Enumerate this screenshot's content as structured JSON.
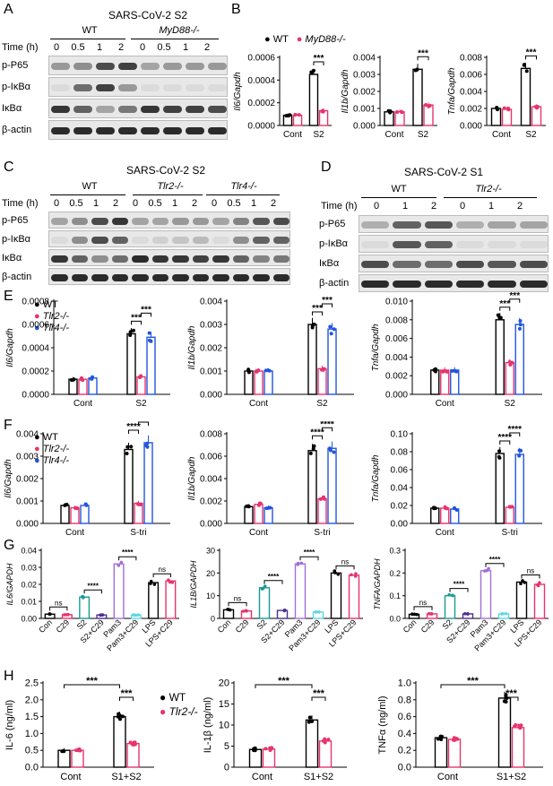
{
  "panels": {
    "A": {
      "letter": "A",
      "title": "SARS-CoV-2 S2",
      "time_label": "Time (h)",
      "groups": [
        "WT",
        "MyD88-/-"
      ],
      "times": [
        "0",
        "0.5",
        "1",
        "2",
        "0",
        "0.5",
        "1",
        "2"
      ],
      "rows": [
        "p-P65",
        "p-IκBα",
        "IκBα",
        "β-actin"
      ]
    },
    "B": {
      "letter": "B",
      "legend": [
        "WT",
        "MyD88-/-"
      ]
    },
    "C": {
      "letter": "C",
      "title": "SARS-CoV-2 S2",
      "time_label": "Time (h)",
      "groups": [
        "WT",
        "Tlr2-/-",
        "Tlr4-/-"
      ],
      "times": [
        "0",
        "0.5",
        "1",
        "2",
        "0",
        "0.5",
        "1",
        "2",
        "0",
        "0.5",
        "1",
        "2"
      ],
      "rows": [
        "p-P65",
        "p-IκBα",
        "IκBα",
        "β-actin"
      ]
    },
    "D": {
      "letter": "D",
      "title": "SARS-CoV-2 S1",
      "time_label": "Time (h)",
      "groups": [
        "WT",
        "Tlr2-/-"
      ],
      "times": [
        "0",
        "1",
        "2",
        "0",
        "1",
        "2"
      ],
      "rows": [
        "p-P65",
        "p-IκBα",
        "IκBα",
        "β-actin"
      ]
    },
    "E": {
      "letter": "E",
      "legend": [
        "WT",
        "Tlr2-/-",
        "Tlr4-/-"
      ]
    },
    "F": {
      "letter": "F",
      "legend": [
        "WT",
        "Tlr2-/-",
        "Tlr4-/-"
      ]
    },
    "G": {
      "letter": "G"
    },
    "H": {
      "letter": "H",
      "legend": [
        "WT",
        "Tlr2-/-"
      ]
    }
  },
  "colors": {
    "black": "#000000",
    "pink": "#e8336b",
    "blue": "#2255dd",
    "teal": "#1a9a93",
    "purple": "#a070d8",
    "cyan": "#5fd6e0",
    "indigo": "#4b2e8a"
  },
  "chart_data": [
    {
      "id": "B1",
      "type": "bar",
      "ylabel": "Il6/Gapdh",
      "categories": [
        "Cont",
        "S2"
      ],
      "ylim": [
        0,
        0.0006
      ],
      "yticks": [
        "0.0000",
        "0.0002",
        "0.0004",
        "0.0006"
      ],
      "series": [
        {
          "name": "WT",
          "color": "#000000",
          "values": [
            9e-05,
            0.00045
          ]
        },
        {
          "name": "MyD88-/-",
          "color": "#e8336b",
          "values": [
            9e-05,
            0.00013
          ]
        }
      ],
      "sig": [
        {
          "label": "***",
          "cat": 1
        }
      ]
    },
    {
      "id": "B2",
      "type": "bar",
      "ylabel": "Il1b/Gapdh",
      "categories": [
        "Cont",
        "S2"
      ],
      "ylim": [
        0,
        0.004
      ],
      "yticks": [
        "0.000",
        "0.001",
        "0.002",
        "0.003",
        "0.004"
      ],
      "series": [
        {
          "name": "WT",
          "color": "#000000",
          "values": [
            0.0008,
            0.0033
          ]
        },
        {
          "name": "MyD88-/-",
          "color": "#e8336b",
          "values": [
            0.0008,
            0.0012
          ]
        }
      ],
      "sig": [
        {
          "label": "***",
          "cat": 1
        }
      ]
    },
    {
      "id": "B3",
      "type": "bar",
      "ylabel": "Tnfa/Gapdh",
      "categories": [
        "Cont",
        "S2"
      ],
      "ylim": [
        0,
        0.008
      ],
      "yticks": [
        "0.000",
        "0.002",
        "0.004",
        "0.006",
        "0.008"
      ],
      "series": [
        {
          "name": "WT",
          "color": "#000000",
          "values": [
            0.002,
            0.0067
          ]
        },
        {
          "name": "MyD88-/-",
          "color": "#e8336b",
          "values": [
            0.0019,
            0.0022
          ]
        }
      ],
      "sig": [
        {
          "label": "***",
          "cat": 1
        }
      ]
    },
    {
      "id": "E1",
      "type": "bar",
      "ylabel": "Il6/Gapdh",
      "categories": [
        "Cont",
        "S2"
      ],
      "ylim": [
        0,
        0.0008
      ],
      "yticks": [
        "0.0000",
        "0.0002",
        "0.0004",
        "0.0006",
        "0.0008"
      ],
      "series": [
        {
          "name": "WT",
          "color": "#000000",
          "values": [
            0.00013,
            0.00052
          ]
        },
        {
          "name": "Tlr2-/-",
          "color": "#e8336b",
          "values": [
            0.00013,
            0.00015
          ]
        },
        {
          "name": "Tlr4-/-",
          "color": "#2255dd",
          "values": [
            0.00014,
            0.00049
          ]
        }
      ],
      "sig": [
        {
          "label": "***",
          "cat": 1,
          "a": 0,
          "b": 1
        },
        {
          "label": "***",
          "cat": 1,
          "a": 1,
          "b": 2
        }
      ]
    },
    {
      "id": "E2",
      "type": "bar",
      "ylabel": "Il1b/Gapdh",
      "categories": [
        "Cont",
        "S2"
      ],
      "ylim": [
        0,
        0.004
      ],
      "yticks": [
        "0.000",
        "0.001",
        "0.002",
        "0.003",
        "0.004"
      ],
      "series": [
        {
          "name": "WT",
          "color": "#000000",
          "values": [
            0.001,
            0.003
          ]
        },
        {
          "name": "Tlr2-/-",
          "color": "#e8336b",
          "values": [
            0.001,
            0.0011
          ]
        },
        {
          "name": "Tlr4-/-",
          "color": "#2255dd",
          "values": [
            0.001,
            0.0028
          ]
        }
      ],
      "sig": [
        {
          "label": "***",
          "cat": 1,
          "a": 0,
          "b": 1
        },
        {
          "label": "***",
          "cat": 1,
          "a": 1,
          "b": 2
        }
      ]
    },
    {
      "id": "E3",
      "type": "bar",
      "ylabel": "Tnfa/Gapdh",
      "categories": [
        "Cont",
        "S2"
      ],
      "ylim": [
        0,
        0.01
      ],
      "yticks": [
        "0.000",
        "0.002",
        "0.004",
        "0.006",
        "0.008",
        "0.010"
      ],
      "series": [
        {
          "name": "WT",
          "color": "#000000",
          "values": [
            0.0026,
            0.008
          ]
        },
        {
          "name": "Tlr2-/-",
          "color": "#e8336b",
          "values": [
            0.0026,
            0.0034
          ]
        },
        {
          "name": "Tlr4-/-",
          "color": "#2255dd",
          "values": [
            0.0026,
            0.0075
          ]
        }
      ],
      "sig": [
        {
          "label": "***",
          "cat": 1,
          "a": 0,
          "b": 1
        },
        {
          "label": "***",
          "cat": 1,
          "a": 1,
          "b": 2
        }
      ]
    },
    {
      "id": "F1",
      "type": "bar",
      "ylabel": "Il6/Gapdh",
      "categories": [
        "Cont",
        "S-tri"
      ],
      "ylim": [
        0,
        0.004
      ],
      "yticks": [
        "0.000",
        "0.001",
        "0.002",
        "0.003",
        "0.004"
      ],
      "series": [
        {
          "name": "WT",
          "color": "#000000",
          "values": [
            0.0008,
            0.0033
          ]
        },
        {
          "name": "Tlr2-/-",
          "color": "#e8336b",
          "values": [
            0.0007,
            0.0009
          ]
        },
        {
          "name": "Tlr4-/-",
          "color": "#2255dd",
          "values": [
            0.0008,
            0.0036
          ]
        }
      ],
      "sig": [
        {
          "label": "****",
          "cat": 1,
          "a": 0,
          "b": 1
        },
        {
          "label": "****",
          "cat": 1,
          "a": 1,
          "b": 2
        }
      ]
    },
    {
      "id": "F2",
      "type": "bar",
      "ylabel": "Il1b/Gapdh",
      "categories": [
        "Cont",
        "S-tri"
      ],
      "ylim": [
        0,
        0.008
      ],
      "yticks": [
        "0.000",
        "0.002",
        "0.004",
        "0.006",
        "0.008"
      ],
      "series": [
        {
          "name": "WT",
          "color": "#000000",
          "values": [
            0.0015,
            0.0065
          ]
        },
        {
          "name": "Tlr2-/-",
          "color": "#e8336b",
          "values": [
            0.0017,
            0.0022
          ]
        },
        {
          "name": "Tlr4-/-",
          "color": "#2255dd",
          "values": [
            0.0014,
            0.0067
          ]
        }
      ],
      "sig": [
        {
          "label": "****",
          "cat": 1,
          "a": 0,
          "b": 1
        },
        {
          "label": "****",
          "cat": 1,
          "a": 1,
          "b": 2
        }
      ]
    },
    {
      "id": "F3",
      "type": "bar",
      "ylabel": "Tnfa/Gapdh",
      "categories": [
        "Cont",
        "S-tri"
      ],
      "ylim": [
        0,
        0.1
      ],
      "yticks": [
        "0.00",
        "0.02",
        "0.04",
        "0.06",
        "0.08",
        "0.10"
      ],
      "series": [
        {
          "name": "WT",
          "color": "#000000",
          "values": [
            0.017,
            0.078
          ]
        },
        {
          "name": "Tlr2-/-",
          "color": "#e8336b",
          "values": [
            0.017,
            0.018
          ]
        },
        {
          "name": "Tlr4-/-",
          "color": "#2255dd",
          "values": [
            0.016,
            0.077
          ]
        }
      ],
      "sig": [
        {
          "label": "****",
          "cat": 1,
          "a": 0,
          "b": 1
        },
        {
          "label": "****",
          "cat": 1,
          "a": 1,
          "b": 2
        }
      ]
    },
    {
      "id": "G1",
      "type": "bar",
      "ylabel": "IL6/GAPDH",
      "categories": [
        "Con",
        "C29",
        "S2",
        "S2+C29",
        "Pam3",
        "Pam3+C29",
        "LPS",
        "LPS+C29"
      ],
      "ylim": [
        0,
        0.04
      ],
      "yticks": [
        "0.00",
        "0.01",
        "0.02",
        "0.03",
        "0.04"
      ],
      "values": [
        0.0025,
        0.0022,
        0.0125,
        0.002,
        0.032,
        0.002,
        0.021,
        0.022
      ],
      "colors": [
        "#000000",
        "#e8336b",
        "#1a9a93",
        "#4b2e8a",
        "#a070d8",
        "#5fd6e0",
        "#000000",
        "#e8336b"
      ],
      "sig": [
        {
          "label": "ns",
          "a": 0,
          "b": 1
        },
        {
          "label": "****",
          "a": 2,
          "b": 3
        },
        {
          "label": "****",
          "a": 4,
          "b": 5
        },
        {
          "label": "ns",
          "a": 6,
          "b": 7
        }
      ]
    },
    {
      "id": "G2",
      "type": "bar",
      "ylabel": "IL1B/GAPDH",
      "categories": [
        "Con",
        "C29",
        "S2",
        "S2+C29",
        "Pam3",
        "Pam3+C29",
        "LPS",
        "LPS+C29"
      ],
      "ylim": [
        0,
        30
      ],
      "yticks": [
        "0",
        "10",
        "20",
        "30"
      ],
      "values": [
        3.8,
        3.3,
        13.5,
        3.5,
        24,
        2.8,
        20,
        19
      ],
      "colors": [
        "#000000",
        "#e8336b",
        "#1a9a93",
        "#4b2e8a",
        "#a070d8",
        "#5fd6e0",
        "#000000",
        "#e8336b"
      ],
      "sig": [
        {
          "label": "ns",
          "a": 0,
          "b": 1
        },
        {
          "label": "****",
          "a": 2,
          "b": 3
        },
        {
          "label": "****",
          "a": 4,
          "b": 5
        },
        {
          "label": "ns",
          "a": 6,
          "b": 7
        }
      ]
    },
    {
      "id": "G3",
      "type": "bar",
      "ylabel": "TNFA/GAPDH",
      "categories": [
        "Con",
        "C29",
        "S2",
        "S2+C29",
        "Pam3",
        "Pam3+C29",
        "LPS",
        "LPS+C29"
      ],
      "ylim": [
        0,
        0.3
      ],
      "yticks": [
        "0.0",
        "0.1",
        "0.2",
        "0.3"
      ],
      "values": [
        0.018,
        0.02,
        0.1,
        0.02,
        0.21,
        0.02,
        0.16,
        0.15
      ],
      "colors": [
        "#000000",
        "#e8336b",
        "#1a9a93",
        "#4b2e8a",
        "#a070d8",
        "#5fd6e0",
        "#000000",
        "#e8336b"
      ],
      "sig": [
        {
          "label": "ns",
          "a": 0,
          "b": 1
        },
        {
          "label": "****",
          "a": 2,
          "b": 3
        },
        {
          "label": "****",
          "a": 4,
          "b": 5
        },
        {
          "label": "ns",
          "a": 6,
          "b": 7
        }
      ]
    },
    {
      "id": "H1",
      "type": "bar",
      "ylabel": "IL-6 (ng/ml)",
      "categories": [
        "Cont",
        "S1+S2"
      ],
      "ylim": [
        0,
        2.5
      ],
      "yticks": [
        "0.0",
        "0.5",
        "1.0",
        "1.5",
        "2.0",
        "2.5"
      ],
      "series": [
        {
          "name": "WT",
          "color": "#000000",
          "values": [
            0.5,
            1.5
          ]
        },
        {
          "name": "Tlr2-/-",
          "color": "#e8336b",
          "values": [
            0.5,
            0.7
          ]
        }
      ],
      "sig": [
        {
          "label": "***",
          "type": "across"
        },
        {
          "label": "***",
          "cat": 1
        }
      ]
    },
    {
      "id": "H2",
      "type": "bar",
      "ylabel": "IL-1β (ng/ml)",
      "categories": [
        "Cont",
        "S1+S2"
      ],
      "ylim": [
        0,
        20
      ],
      "yticks": [
        "0",
        "5",
        "10",
        "15",
        "20"
      ],
      "series": [
        {
          "name": "WT",
          "color": "#000000",
          "values": [
            4.2,
            11.2
          ]
        },
        {
          "name": "Tlr2-/-",
          "color": "#e8336b",
          "values": [
            4.3,
            6.2
          ]
        }
      ],
      "sig": [
        {
          "label": "***",
          "type": "across"
        },
        {
          "label": "***",
          "cat": 1
        }
      ]
    },
    {
      "id": "H3",
      "type": "bar",
      "ylabel": "TNFα (ng/ml)",
      "categories": [
        "Cont",
        "S1+S2"
      ],
      "ylim": [
        0,
        1.0
      ],
      "yticks": [
        "0.0",
        "0.2",
        "0.4",
        "0.6",
        "0.8",
        "1.0"
      ],
      "series": [
        {
          "name": "WT",
          "color": "#000000",
          "values": [
            0.35,
            0.82
          ]
        },
        {
          "name": "Tlr2-/-",
          "color": "#e8336b",
          "values": [
            0.33,
            0.47
          ]
        }
      ],
      "sig": [
        {
          "label": "***",
          "type": "across"
        },
        {
          "label": "***",
          "cat": 1
        }
      ]
    }
  ]
}
